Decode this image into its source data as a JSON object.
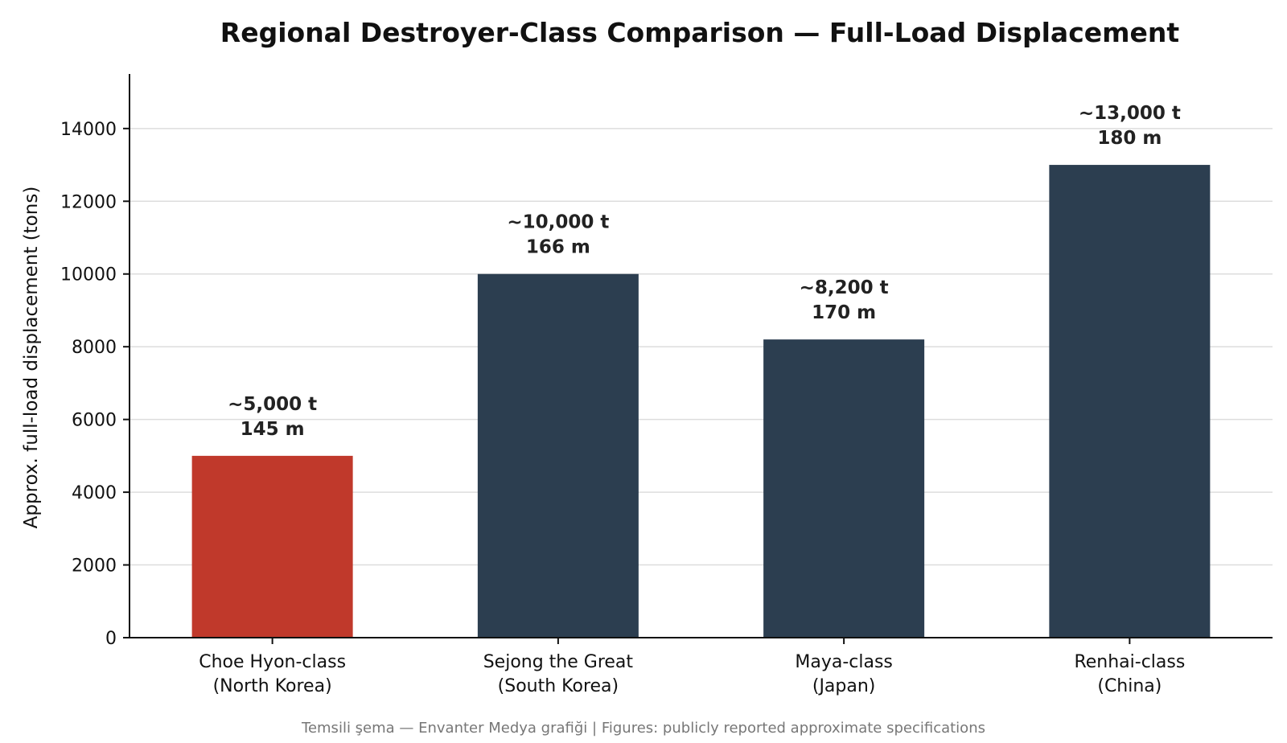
{
  "chart_data": {
    "type": "bar",
    "title": "Regional Destroyer-Class Comparison — Full-Load Displacement",
    "xlabel": "",
    "ylabel": "Approx. full-load displacement (tons)",
    "ylim": [
      0,
      15500
    ],
    "yticks": [
      0,
      2000,
      4000,
      6000,
      8000,
      10000,
      12000,
      14000
    ],
    "grid": "horizontal",
    "categories": [
      [
        "Choe Hyon-class",
        "(North Korea)"
      ],
      [
        "Sejong the Great",
        "(South Korea)"
      ],
      [
        "Maya-class",
        "(Japan)"
      ],
      [
        "Renhai-class",
        "(China)"
      ]
    ],
    "values": [
      5000,
      10000,
      8200,
      13000
    ],
    "data_labels": [
      [
        "~5,000 t",
        "145 m"
      ],
      [
        "~10,000 t",
        "166 m"
      ],
      [
        "~8,200 t",
        "170 m"
      ],
      [
        "~13,000 t",
        "180 m"
      ]
    ],
    "colors": [
      "#c0392b",
      "#2c3e50",
      "#2c3e50",
      "#2c3e50"
    ],
    "footer": "Temsili şema — Envanter Medya grafiği | Figures: publicly reported approximate specifications"
  }
}
